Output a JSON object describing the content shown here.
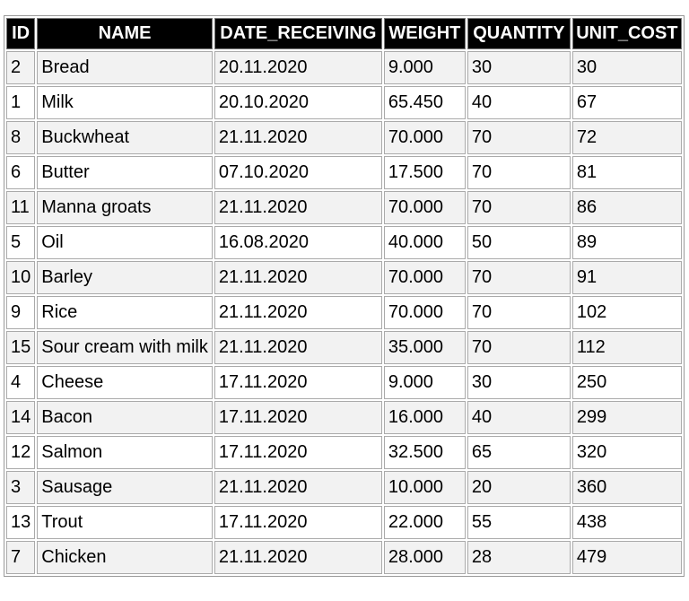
{
  "table": {
    "columns": [
      "ID",
      "NAME",
      "DATE_RECEIVING",
      "WEIGHT",
      "QUANTITY",
      "UNIT_COST"
    ],
    "rows": [
      [
        "2",
        "Bread",
        "20.11.2020",
        "9.000",
        "30",
        "30"
      ],
      [
        "1",
        "Milk",
        "20.10.2020",
        "65.450",
        "40",
        "67"
      ],
      [
        "8",
        "Buckwheat",
        "21.11.2020",
        "70.000",
        "70",
        "72"
      ],
      [
        "6",
        "Butter",
        "07.10.2020",
        "17.500",
        "70",
        "81"
      ],
      [
        "11",
        "Manna groats",
        "21.11.2020",
        "70.000",
        "70",
        "86"
      ],
      [
        "5",
        "Oil",
        "16.08.2020",
        "40.000",
        "50",
        "89"
      ],
      [
        "10",
        "Barley",
        "21.11.2020",
        "70.000",
        "70",
        "91"
      ],
      [
        "9",
        "Rice",
        "21.11.2020",
        "70.000",
        "70",
        "102"
      ],
      [
        "15",
        "Sour cream with milk",
        "21.11.2020",
        "35.000",
        "70",
        "112"
      ],
      [
        "4",
        "Cheese",
        "17.11.2020",
        "9.000",
        "30",
        "250"
      ],
      [
        "14",
        "Bacon",
        "17.11.2020",
        "16.000",
        "40",
        "299"
      ],
      [
        "12",
        "Salmon",
        "17.11.2020",
        "32.500",
        "65",
        "320"
      ],
      [
        "3",
        "Sausage",
        "21.11.2020",
        "10.000",
        "20",
        "360"
      ],
      [
        "13",
        "Trout",
        "17.11.2020",
        "22.000",
        "55",
        "438"
      ],
      [
        "7",
        "Chicken",
        "21.11.2020",
        "28.000",
        "28",
        "479"
      ]
    ]
  },
  "colors": {
    "header_bg": "#000000",
    "header_text": "#ffffff",
    "row_alt_bg": "#f2f2f2",
    "row_bg": "#ffffff"
  }
}
